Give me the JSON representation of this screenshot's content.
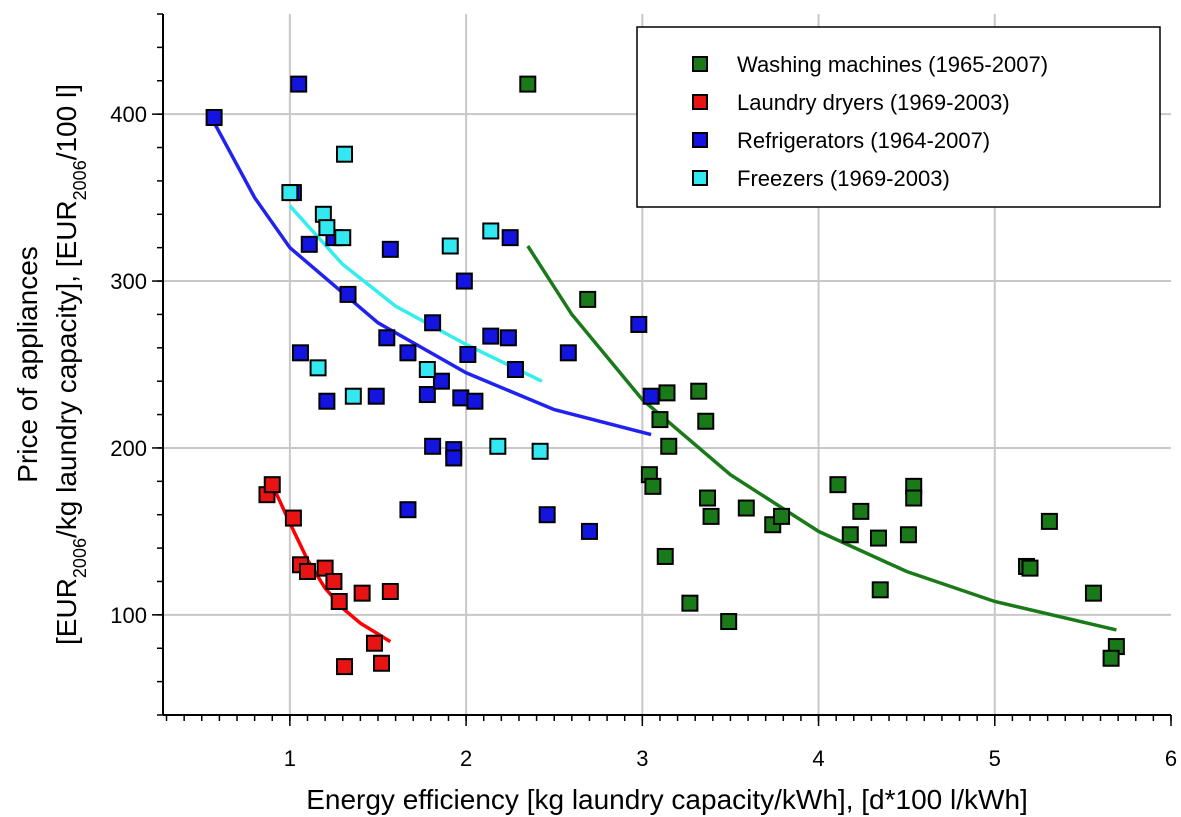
{
  "chart_data": {
    "type": "scatter",
    "xlabel": "Energy efficiency [kg laundry capacity/kWh], [d*100 l/kWh]",
    "ylabel": {
      "line1": "Price of appliances",
      "line2": [
        {
          "text": "[EUR"
        },
        {
          "text": "2006",
          "subscript": true
        },
        {
          "text": "/kg laundry capacity], [EUR"
        },
        {
          "text": "2006",
          "subscript": true
        },
        {
          "text": "/100 l]"
        }
      ]
    },
    "xlim": [
      0.28,
      6
    ],
    "ylim": [
      40,
      460
    ],
    "xticks": [
      1,
      2,
      3,
      4,
      5,
      6
    ],
    "yticks": [
      100,
      200,
      300,
      400
    ],
    "minor_ticks": {
      "x": 10,
      "y": 5
    },
    "grid": true,
    "legend": "upper right",
    "series": [
      {
        "name": "Washing machines (1965-2007)",
        "color": "#1a7a1a",
        "fit_color": "#1a7a1a",
        "x": [
          2.35,
          2.69,
          3.04,
          3.06,
          3.1,
          3.14,
          3.15,
          3.13,
          3.27,
          3.32,
          3.36,
          3.37,
          3.39,
          3.49,
          3.59,
          3.74,
          3.79,
          4.11,
          4.18,
          4.24,
          4.34,
          4.35,
          4.51,
          4.54,
          4.54,
          5.18,
          5.2,
          5.31,
          5.56,
          5.69,
          5.66
        ],
        "values": [
          418,
          289,
          184,
          177,
          217,
          233,
          201,
          135,
          107,
          234,
          216,
          170,
          159,
          96,
          164,
          154,
          159,
          178,
          148,
          162,
          146,
          115,
          148,
          177,
          170,
          129,
          128,
          156,
          113,
          81,
          74
        ],
        "fit": {
          "x": [
            2.35,
            2.6,
            3.0,
            3.5,
            4.0,
            4.5,
            5.0,
            5.69
          ],
          "y": [
            321,
            280,
            229,
            184,
            150,
            126,
            108,
            91
          ]
        }
      },
      {
        "name": "Laundry dryers (1969-2003)",
        "color": "#e81414",
        "fit_color": "#ff0000",
        "x": [
          0.87,
          0.9,
          1.02,
          1.06,
          1.1,
          1.2,
          1.25,
          1.28,
          1.41,
          1.57,
          1.48,
          1.31,
          1.52
        ],
        "values": [
          172,
          178,
          158,
          130,
          126,
          128,
          120,
          108,
          113,
          114,
          83,
          69,
          71
        ],
        "fit": {
          "x": [
            0.9,
            1.0,
            1.1,
            1.2,
            1.3,
            1.4,
            1.57
          ],
          "y": [
            178,
            155,
            133,
            116,
            104,
            95,
            84
          ]
        }
      },
      {
        "name": "Refrigerators (1964-2007)",
        "color": "#1414e0",
        "fit_color": "#2222ee",
        "x": [
          0.57,
          1.05,
          1.02,
          1.11,
          1.25,
          1.57,
          1.33,
          1.06,
          1.21,
          1.55,
          1.67,
          1.49,
          1.81,
          1.78,
          1.86,
          1.81,
          1.99,
          2.01,
          1.97,
          2.05,
          1.93,
          1.93,
          2.14,
          2.25,
          2.24,
          2.28,
          2.58,
          2.98,
          3.05,
          2.46,
          2.7,
          1.67
        ],
        "values": [
          398,
          418,
          353,
          322,
          326,
          319,
          292,
          257,
          228,
          266,
          257,
          231,
          275,
          232,
          240,
          201,
          300,
          256,
          230,
          228,
          199,
          194,
          267,
          326,
          266,
          247,
          257,
          274,
          231,
          160,
          150,
          163
        ],
        "fit": {
          "x": [
            0.57,
            0.8,
            1.0,
            1.5,
            2.0,
            2.5,
            3.05
          ],
          "y": [
            395,
            350,
            320,
            275,
            245,
            223,
            208
          ]
        }
      },
      {
        "name": "Freezers (1969-2003)",
        "color": "#33e8f0",
        "fit_color": "#33eeee",
        "x": [
          1.0,
          1.31,
          1.19,
          1.21,
          1.3,
          1.91,
          2.14,
          1.16,
          1.36,
          1.78,
          2.18,
          2.42
        ],
        "values": [
          353,
          376,
          340,
          332,
          326,
          321,
          330,
          248,
          231,
          247,
          201,
          198
        ],
        "fit": {
          "x": [
            1.0,
            1.3,
            1.6,
            2.0,
            2.43
          ],
          "y": [
            345,
            310,
            285,
            262,
            240
          ]
        }
      }
    ]
  }
}
